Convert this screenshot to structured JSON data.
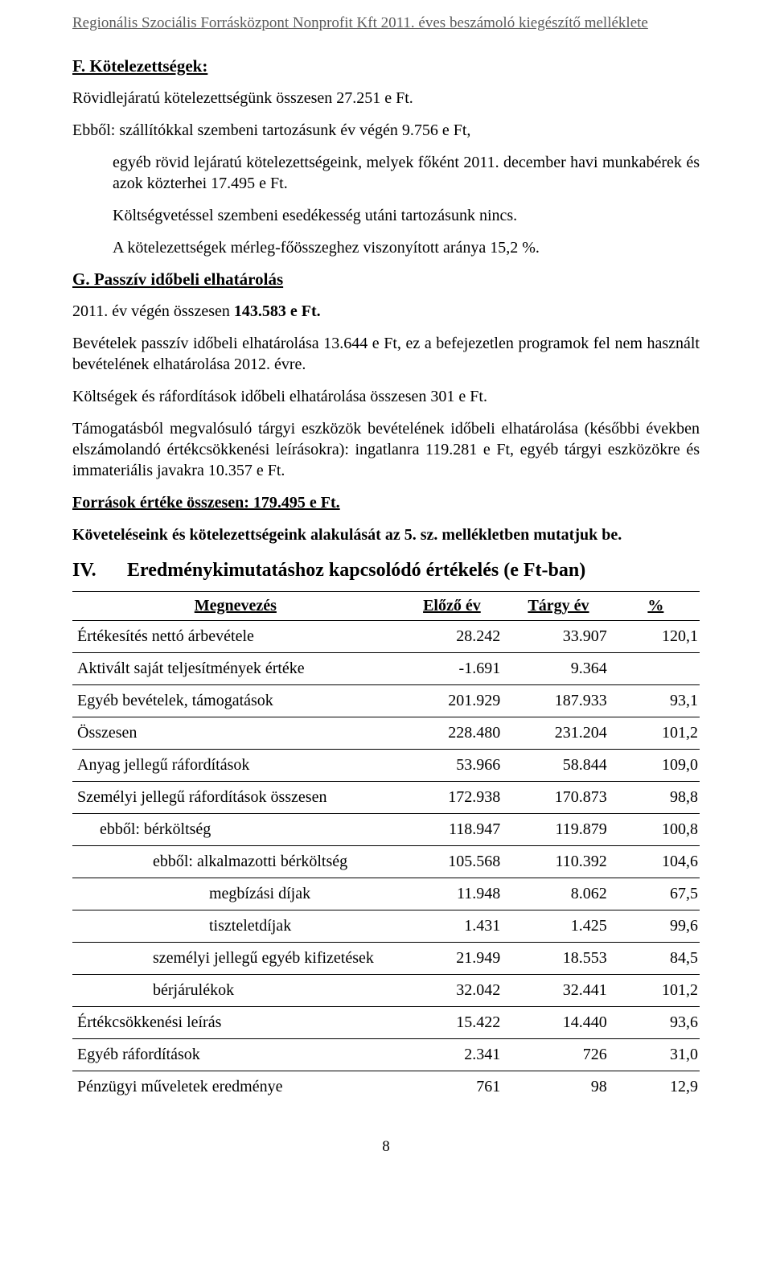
{
  "header": "Regionális Szociális Forrásközpont Nonprofit Kft 2011. éves beszámoló kiegészítő melléklete",
  "sectionF": {
    "title": "F. Kötelezettségek:",
    "p1": "Rövidlejáratú kötelezettségünk összesen 27.251 e Ft.",
    "p2": "Ebből: szállítókkal szembeni tartozásunk év végén 9.756 e Ft,",
    "p3": "egyéb rövid lejáratú kötelezettségeink, melyek főként 2011. december havi munkabérek és azok közterhei 17.495 e Ft.",
    "p4": "Költségvetéssel szembeni esedékesség utáni tartozásunk nincs.",
    "p5": "A kötelezettségek mérleg-főösszeghez viszonyított aránya 15,2 %."
  },
  "sectionG": {
    "title": "G. Passzív időbeli elhatárolás",
    "p1_a": "2011. év végén összesen ",
    "p1_b": "143.583 e Ft.",
    "p2": "Bevételek passzív időbeli elhatárolása 13.644 e Ft, ez a befejezetlen programok fel nem használt bevételének elhatárolása 2012. évre.",
    "p3": "Költségek és ráfordítások időbeli elhatárolása összesen 301 e Ft.",
    "p4": "Támogatásból megvalósuló tárgyi eszközök bevételének időbeli elhatárolása (későbbi években elszámolandó értékcsökkenési leírásokra): ingatlanra 119.281 e Ft, egyéb tárgyi eszközökre és immateriális javakra 10.357 e Ft.",
    "sources": "Források értéke összesen: 179.495 e Ft.",
    "ref": "Követeléseink és kötelezettségeink alakulását az 5. sz. mellékletben mutatjuk be."
  },
  "sectionIV": {
    "num": "IV.",
    "title": "Eredménykimutatáshoz kapcsolódó értékelés (e Ft-ban)"
  },
  "table": {
    "columns": [
      "Megnevezés",
      "Előző év",
      "Tárgy év",
      "%"
    ],
    "rows": [
      {
        "name": "Értékesítés nettó árbevétele",
        "prev": "28.242",
        "curr": "33.907",
        "pct": "120,1",
        "indent": 0
      },
      {
        "name": "Aktivált saját teljesítmények értéke",
        "prev": "-1.691",
        "curr": "9.364",
        "pct": "",
        "indent": 0
      },
      {
        "name": "Egyéb bevételek, támogatások",
        "prev": "201.929",
        "curr": "187.933",
        "pct": "93,1",
        "indent": 0
      },
      {
        "name": "Összesen",
        "prev": "228.480",
        "curr": "231.204",
        "pct": "101,2",
        "indent": 0
      },
      {
        "name": "Anyag jellegű ráfordítások",
        "prev": "53.966",
        "curr": "58.844",
        "pct": "109,0",
        "indent": 0
      },
      {
        "name": "Személyi jellegű ráfordítások összesen",
        "prev": "172.938",
        "curr": "170.873",
        "pct": "98,8",
        "indent": 0
      },
      {
        "name": "ebből:     bérköltség",
        "prev": "118.947",
        "curr": "119.879",
        "pct": "100,8",
        "indent": 1
      },
      {
        "name": "ebből:    alkalmazotti bérköltség",
        "prev": "105.568",
        "curr": "110.392",
        "pct": "104,6",
        "indent": 2
      },
      {
        "name": "megbízási díjak",
        "prev": "11.948",
        "curr": "8.062",
        "pct": "67,5",
        "indent": 3
      },
      {
        "name": "tiszteletdíjak",
        "prev": "1.431",
        "curr": "1.425",
        "pct": "99,6",
        "indent": 3
      },
      {
        "name": "személyi jellegű egyéb kifizetések",
        "prev": "21.949",
        "curr": "18.553",
        "pct": "84,5",
        "indent": 2
      },
      {
        "name": "bérjárulékok",
        "prev": "32.042",
        "curr": "32.441",
        "pct": "101,2",
        "indent": 2
      },
      {
        "name": "Értékcsökkenési leírás",
        "prev": "15.422",
        "curr": "14.440",
        "pct": "93,6",
        "indent": 0
      },
      {
        "name": "Egyéb ráfordítások",
        "prev": "2.341",
        "curr": "726",
        "pct": "31,0",
        "indent": 0
      },
      {
        "name": "Pénzügyi műveletek eredménye",
        "prev": "761",
        "curr": "98",
        "pct": "12,9",
        "indent": 0,
        "last": true
      }
    ]
  },
  "pageNumber": "8"
}
